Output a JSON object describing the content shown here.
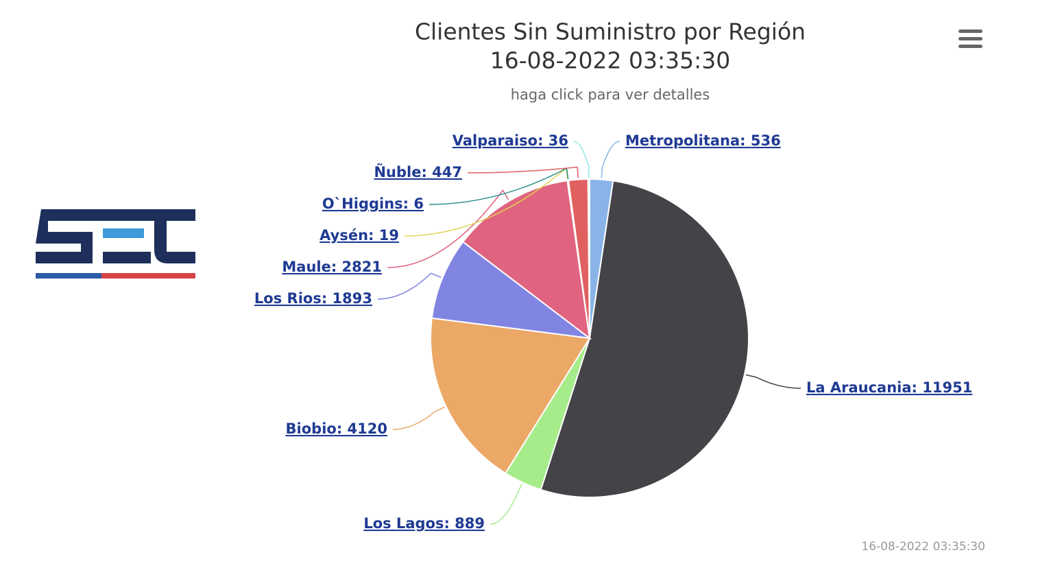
{
  "chart_data": {
    "type": "pie",
    "title": [
      "Clientes Sin Suministro por Región",
      "16-08-2022 03:35:30"
    ],
    "subtitle": "haga click para ver detalles",
    "credit": "16-08-2022 03:35:30",
    "categories": [
      "Metropolitana",
      "La Araucania",
      "Los Lagos",
      "Biobio",
      "Los Rios",
      "Maule",
      "Aysén",
      "O`Higgins",
      "Ñuble",
      "Valparaiso"
    ],
    "values": [
      536,
      11951,
      889,
      4120,
      1893,
      2821,
      19,
      6,
      447,
      36
    ],
    "value_labels": [
      "Metropolitana: 536",
      "La Araucania: 11951",
      "Los Lagos: 889",
      "Biobio: 4120",
      "Los Rios: 1893",
      "Maule: 2821",
      "Aysén: 19",
      "O`Higgins: 6",
      "Ñuble: 447",
      "Valparaiso: 36"
    ],
    "colors": [
      "#8ab4e8",
      "#434348",
      "#a6ec8a",
      "#eba867",
      "#8085e2",
      "#e0647f",
      "#e4d354",
      "#2b908f",
      "#e06060",
      "#91e8e1"
    ]
  }
}
